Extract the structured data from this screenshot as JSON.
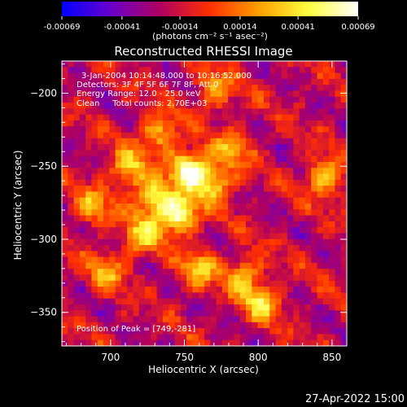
{
  "chart_data": {
    "type": "heatmap",
    "title": "Reconstructed RHESSI Image",
    "xlabel": "Heliocentric X (arcsec)",
    "ylabel": "Heliocentric Y (arcsec)",
    "xlim": [
      667,
      860
    ],
    "ylim": [
      -373,
      -178
    ],
    "xticks": [
      700,
      750,
      800,
      850
    ],
    "yticks": [
      -200,
      -250,
      -300,
      -350
    ],
    "colorbar": {
      "range": [
        -0.00069,
        0.00069
      ],
      "ticks": [
        -0.00069,
        -0.00041,
        -0.00014,
        0.00014,
        0.00041,
        0.00069
      ],
      "tick_labels": [
        "-0.00069",
        "-0.00041",
        "-0.00014",
        "0.00014",
        "0.00041",
        "0.00069"
      ],
      "unit_label": "(photons cm⁻² s⁻¹ asec⁻²)",
      "colors": [
        "#0000ff",
        "#6a00c8",
        "#b00060",
        "#ff3000",
        "#ffa000",
        "#ffff40",
        "#ffffff"
      ]
    },
    "annotations": [
      "3-Jan-2004 10:14:48.000 to 10:16:52.000",
      "Detectors: 3F 4F 5F 6F 7F 8F, Att 0",
      "Energy Range: 12.0 - 25.0 keV",
      "Clean     Total counts: 2.70E+03"
    ],
    "peak_label": "Position of Peak = [749,-281]",
    "peak_position": [
      749,
      -281
    ],
    "bright_sources": [
      {
        "x": 753,
        "y": -252,
        "amplitude": 0.00066
      },
      {
        "x": 746,
        "y": -283,
        "amplitude": 0.00069
      },
      {
        "x": 728,
        "y": -272,
        "amplitude": 0.00045
      },
      {
        "x": 770,
        "y": -262,
        "amplitude": 0.00042
      },
      {
        "x": 712,
        "y": -252,
        "amplitude": 0.00036
      },
      {
        "x": 733,
        "y": -228,
        "amplitude": 0.00034
      },
      {
        "x": 722,
        "y": -298,
        "amplitude": 0.00034
      },
      {
        "x": 790,
        "y": -325,
        "amplitude": 0.0003
      },
      {
        "x": 803,
        "y": -343,
        "amplitude": 0.00036
      },
      {
        "x": 760,
        "y": -320,
        "amplitude": 0.00028
      },
      {
        "x": 771,
        "y": -198,
        "amplitude": 0.00024
      },
      {
        "x": 688,
        "y": -278,
        "amplitude": 0.00024
      },
      {
        "x": 846,
        "y": -257,
        "amplitude": 0.00042
      },
      {
        "x": 782,
        "y": -238,
        "amplitude": 0.00024
      },
      {
        "x": 698,
        "y": -322,
        "amplitude": 0.00022
      }
    ],
    "background_level": -0.00018
  },
  "footer_timestamp": "27-Apr-2022 15:00"
}
